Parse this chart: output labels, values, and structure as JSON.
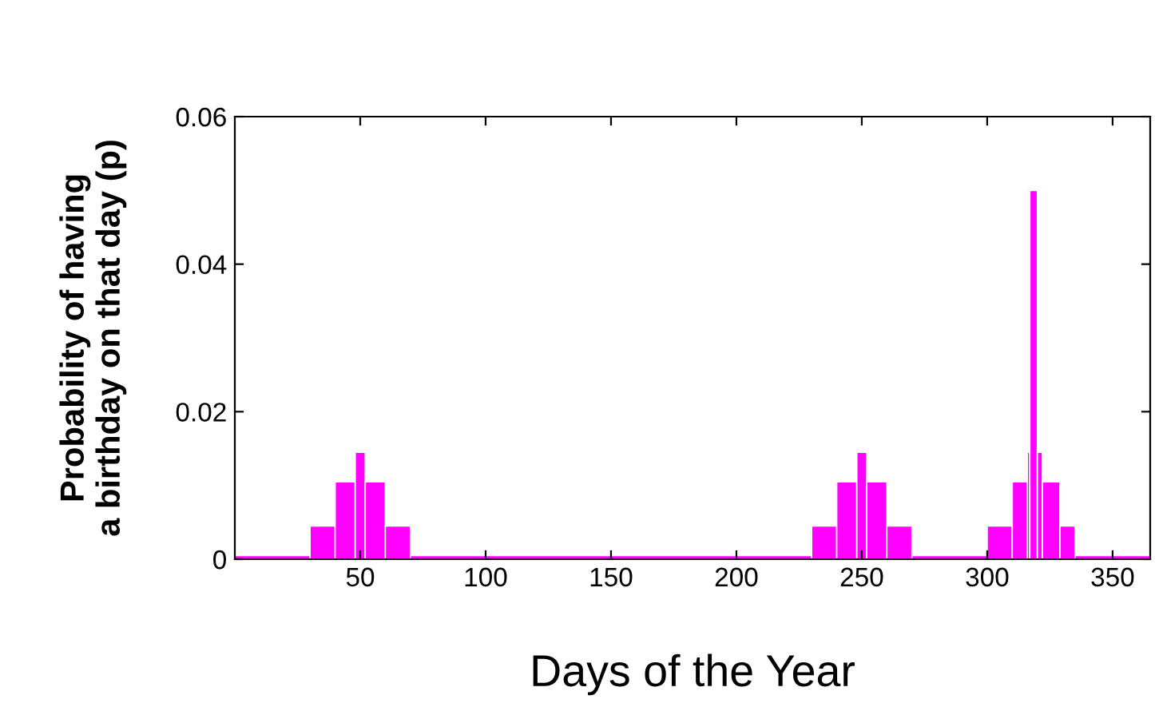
{
  "chart_data": {
    "type": "histogram",
    "xlabel": "Days of the Year",
    "ylabel": "Probability of having\na birthday on that day (p)",
    "bins": [
      0,
      30,
      40,
      48,
      52,
      60,
      70,
      230,
      240,
      248,
      252,
      260,
      270,
      300,
      310,
      316,
      317,
      320,
      322,
      329,
      335,
      365
    ],
    "values": [
      0.0005,
      0.0045,
      0.0105,
      0.0145,
      0.0105,
      0.0045,
      0.0005,
      0.0045,
      0.0105,
      0.0145,
      0.0105,
      0.0045,
      0.0005,
      0.0045,
      0.0105,
      0.0145,
      0.05,
      0.0145,
      0.0105,
      0.0045,
      0.0005
    ],
    "color": "#ff00ff",
    "xlim": [
      0,
      365
    ],
    "xticks": [
      50,
      100,
      150,
      200,
      250,
      300,
      350
    ],
    "ylim": [
      0,
      0.06
    ],
    "yticks": [
      0,
      0.02,
      0.04,
      0.06
    ],
    "grid": false
  }
}
